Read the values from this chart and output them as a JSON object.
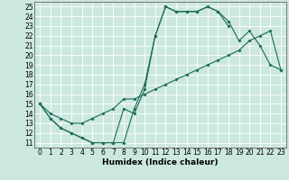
{
  "xlabel": "Humidex (Indice chaleur)",
  "xlim": [
    -0.5,
    23.5
  ],
  "ylim": [
    10.5,
    25.5
  ],
  "xticks": [
    0,
    1,
    2,
    3,
    4,
    5,
    6,
    7,
    8,
    9,
    10,
    11,
    12,
    13,
    14,
    15,
    16,
    17,
    18,
    19,
    20,
    21,
    22,
    23
  ],
  "yticks": [
    11,
    12,
    13,
    14,
    15,
    16,
    17,
    18,
    19,
    20,
    21,
    22,
    23,
    24,
    25
  ],
  "bg_color": "#cce8de",
  "grid_color": "#ffffff",
  "line_color": "#1a6b5a",
  "line1_x": [
    0,
    1,
    2,
    3,
    4,
    5,
    6,
    7,
    8,
    9,
    10,
    11,
    12,
    13,
    14,
    15,
    16,
    17,
    18,
    19,
    20,
    21,
    22,
    23
  ],
  "line1_y": [
    15.0,
    13.5,
    12.5,
    12.0,
    11.5,
    11.0,
    11.0,
    11.0,
    11.0,
    14.5,
    17.0,
    22.0,
    25.0,
    24.5,
    24.5,
    24.5,
    25.0,
    24.5,
    23.5,
    21.5,
    22.5,
    21.0,
    19.0,
    18.5
  ],
  "line2_x": [
    0,
    1,
    2,
    3,
    4,
    5,
    6,
    7,
    8,
    9,
    10,
    11,
    12,
    13,
    14,
    15,
    16,
    17,
    18
  ],
  "line2_y": [
    15.0,
    13.5,
    12.5,
    12.0,
    11.5,
    11.0,
    11.0,
    11.0,
    14.5,
    14.0,
    16.5,
    22.0,
    25.0,
    24.5,
    24.5,
    24.5,
    25.0,
    24.5,
    23.0
  ],
  "line3_x": [
    0,
    1,
    2,
    3,
    4,
    5,
    6,
    7,
    8,
    9,
    10,
    11,
    12,
    13,
    14,
    15,
    16,
    17,
    18,
    19,
    20,
    21,
    22,
    23
  ],
  "line3_y": [
    15.0,
    14.0,
    13.5,
    13.0,
    13.0,
    13.5,
    14.0,
    14.5,
    15.5,
    15.5,
    16.0,
    16.5,
    17.0,
    17.5,
    18.0,
    18.5,
    19.0,
    19.5,
    20.0,
    20.5,
    21.5,
    22.0,
    22.5,
    18.5
  ],
  "tick_fontsize": 5.5,
  "xlabel_fontsize": 6.5,
  "lw": 0.8,
  "ms": 2.0
}
